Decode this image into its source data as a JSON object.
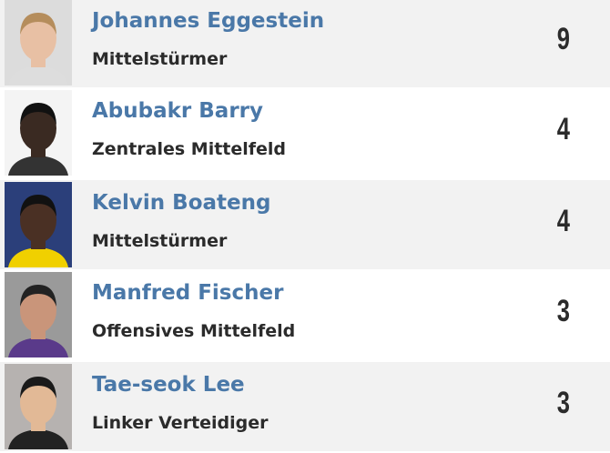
{
  "players": [
    {
      "name": "Johannes Eggestein",
      "position": "Mittelstürmer",
      "goals": 9
    },
    {
      "name": "Abubakr Barry",
      "position": "Zentrales Mittelfeld",
      "goals": 4
    },
    {
      "name": "Kelvin Boateng",
      "position": "Mittelstürmer",
      "goals": 4
    },
    {
      "name": "Manfred Fischer",
      "position": "Offensives Mittelfeld",
      "goals": 3
    },
    {
      "name": "Tae-seok Lee",
      "position": "Linker Verteidiger",
      "goals": 3
    }
  ]
}
